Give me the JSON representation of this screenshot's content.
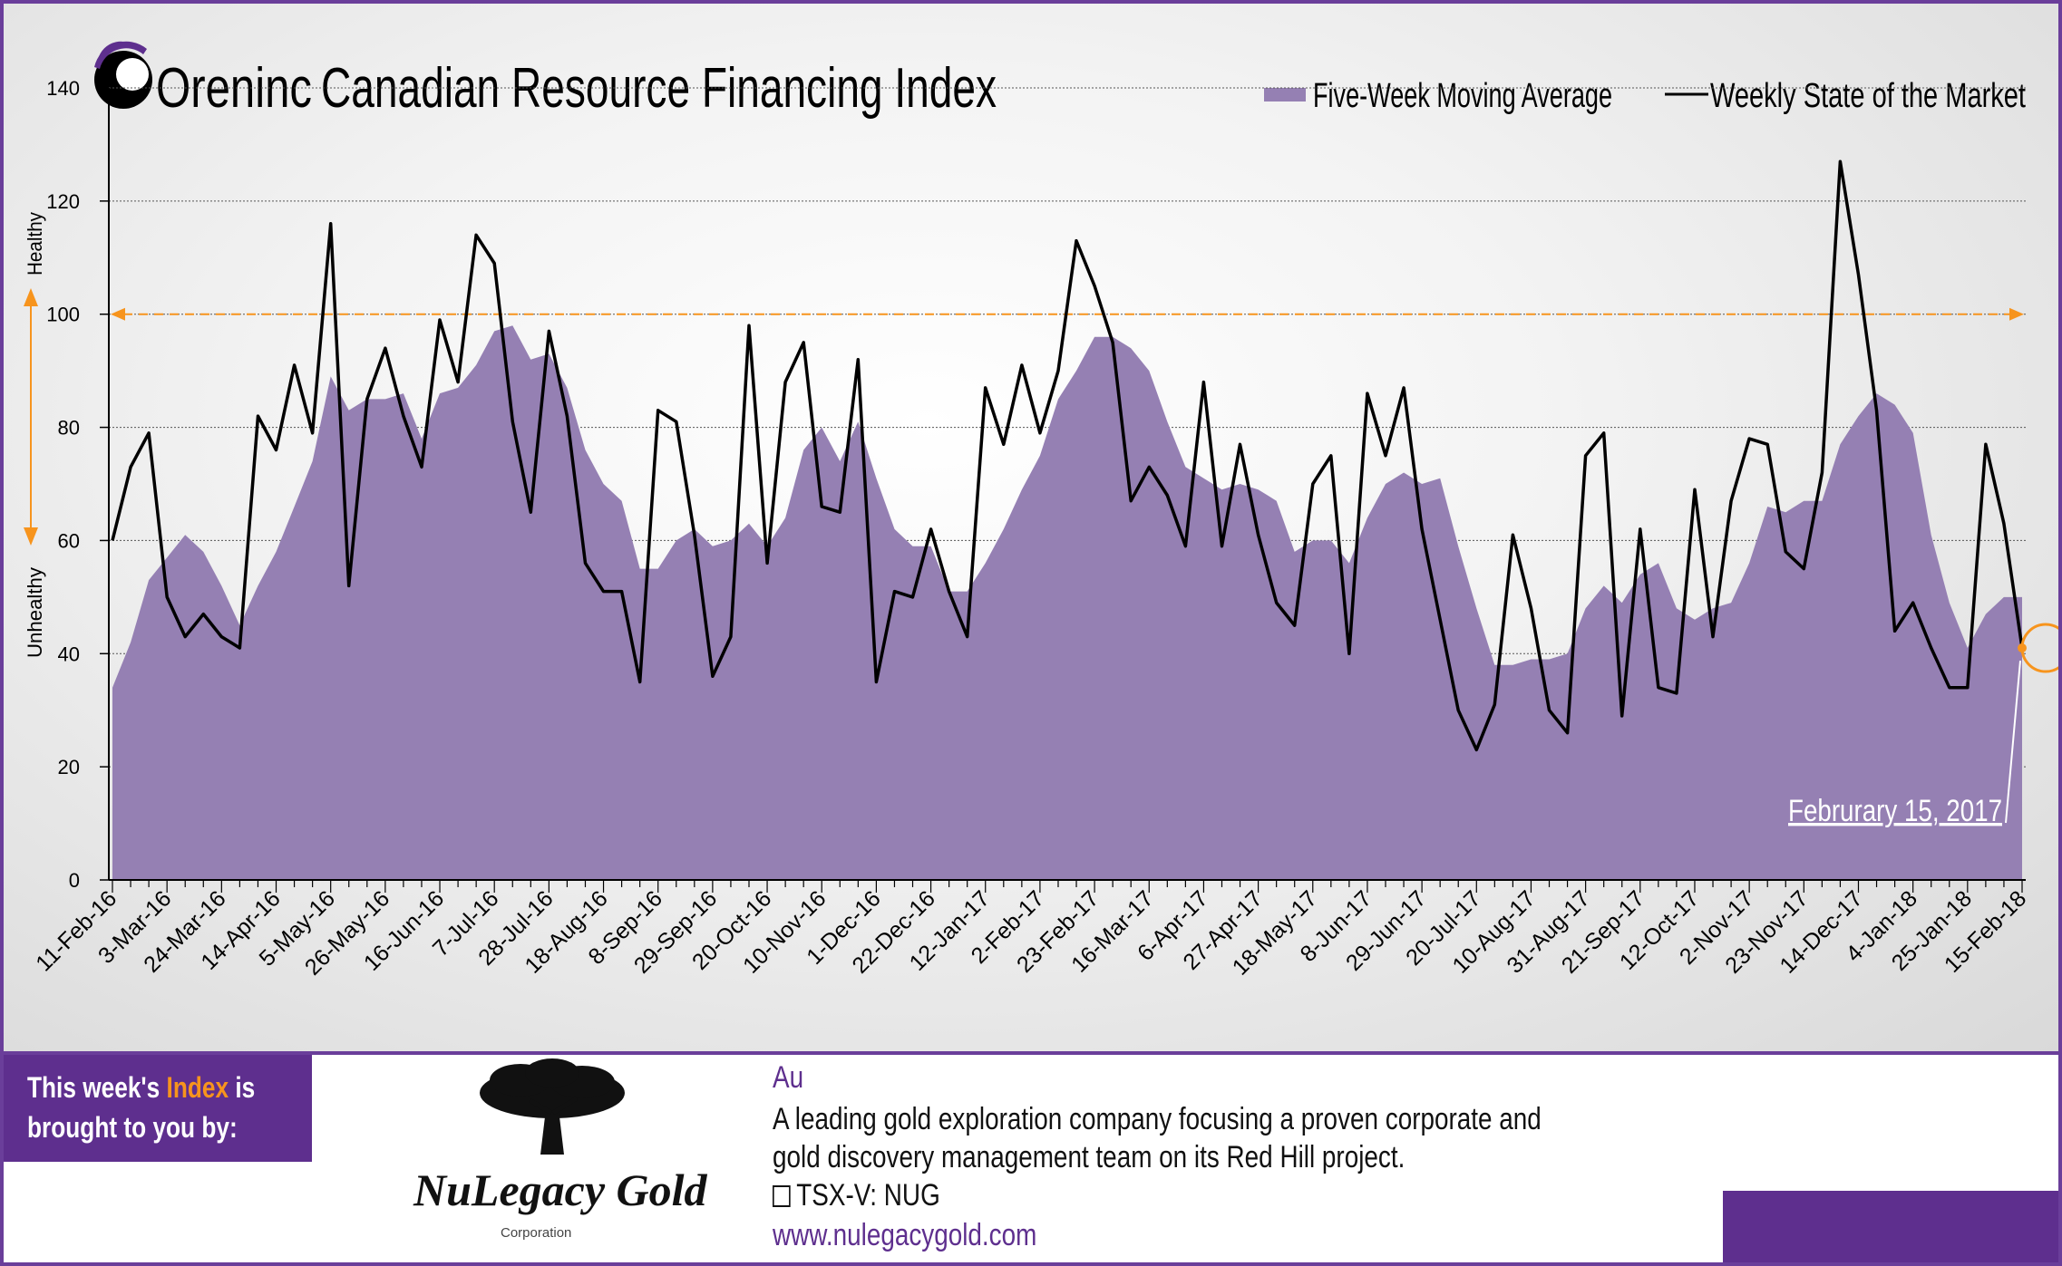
{
  "title": "Canadian Resource Financing Index",
  "brand": {
    "name": "Oreninc"
  },
  "legend": {
    "area_label": "Five-Week Moving Average",
    "line_label": "Weekly State of the Market"
  },
  "axis_side_labels": {
    "healthy": "Healthy",
    "unhealthy": "Unhealthy"
  },
  "callout": "Februrary 15, 2017",
  "colors": {
    "area": "#9580b3",
    "line": "#000000",
    "threshold": "#f7941d",
    "purple": "#5e2f8e",
    "accent": "#f7941d"
  },
  "sponsor": {
    "line1_prefix": "This week's ",
    "line1_highlight": "Index",
    "line1_suffix": " is",
    "line2": "brought to you by:",
    "company_name": "NuLegacy Gold",
    "company_sub": "Corporation",
    "symbol": "Au",
    "description_line1": "A leading gold exploration company focusing a proven corporate and",
    "description_line2": "gold discovery management team on its Red Hill project.",
    "ticker": "TSX-V:  NUG",
    "ticker_icon": "chart-icon",
    "url": "www.nulegacygold.com"
  },
  "chart_data": {
    "type": "area+line",
    "ylim": [
      0,
      140
    ],
    "yticks": [
      0,
      20,
      40,
      60,
      80,
      100,
      120,
      140
    ],
    "threshold": 100,
    "grid": true,
    "legend_position": "top-right",
    "x_tick_labels": [
      "11-Feb-16",
      "3-Mar-16",
      "24-Mar-16",
      "14-Apr-16",
      "5-May-16",
      "26-May-16",
      "16-Jun-16",
      "7-Jul-16",
      "28-Jul-16",
      "18-Aug-16",
      "8-Sep-16",
      "29-Sep-16",
      "20-Oct-16",
      "10-Nov-16",
      "1-Dec-16",
      "22-Dec-16",
      "12-Jan-17",
      "2-Feb-17",
      "23-Feb-17",
      "16-Mar-17",
      "6-Apr-17",
      "27-Apr-17",
      "18-May-17",
      "8-Jun-17",
      "29-Jun-17",
      "20-Jul-17",
      "10-Aug-17",
      "31-Aug-17",
      "21-Sep-17",
      "12-Oct-17",
      "2-Nov-17",
      "23-Nov-17",
      "14-Dec-17",
      "4-Jan-18",
      "25-Jan-18",
      "15-Feb-18"
    ],
    "series": [
      {
        "name": "Five-Week Moving Average",
        "type": "area",
        "values": [
          34,
          42,
          53,
          57,
          61,
          58,
          52,
          45,
          52,
          58,
          66,
          74,
          89,
          83,
          85,
          85,
          86,
          78,
          86,
          87,
          91,
          97,
          98,
          92,
          93,
          87,
          76,
          70,
          67,
          55,
          55,
          60,
          62,
          59,
          60,
          63,
          59,
          64,
          76,
          80,
          74,
          81,
          71,
          62,
          59,
          59,
          51,
          51,
          56,
          62,
          69,
          75,
          85,
          90,
          96,
          96,
          94,
          90,
          81,
          73,
          71,
          69,
          70,
          69,
          67,
          58,
          60,
          60,
          56,
          64,
          70,
          72,
          70,
          71,
          59,
          48,
          38,
          38,
          39,
          39,
          40,
          48,
          52,
          49,
          54,
          56,
          48,
          46,
          48,
          49,
          56,
          66,
          65,
          67,
          67,
          77,
          82,
          86,
          84,
          79,
          61,
          49,
          41,
          47,
          50,
          50
        ]
      },
      {
        "name": "Weekly State of the Market",
        "type": "line",
        "values": [
          60,
          73,
          79,
          50,
          43,
          47,
          43,
          41,
          82,
          76,
          91,
          79,
          116,
          52,
          85,
          94,
          82,
          73,
          99,
          88,
          114,
          109,
          81,
          65,
          97,
          82,
          56,
          51,
          51,
          35,
          83,
          81,
          61,
          36,
          43,
          98,
          56,
          88,
          95,
          66,
          65,
          92,
          35,
          51,
          50,
          62,
          51,
          43,
          87,
          77,
          91,
          79,
          90,
          113,
          105,
          95,
          67,
          73,
          68,
          59,
          88,
          59,
          77,
          61,
          49,
          45,
          70,
          75,
          40,
          86,
          75,
          87,
          62,
          46,
          30,
          23,
          31,
          61,
          48,
          30,
          26,
          75,
          79,
          29,
          62,
          34,
          33,
          69,
          43,
          67,
          78,
          77,
          58,
          55,
          72,
          127,
          107,
          83,
          44,
          49,
          41,
          34,
          34,
          77,
          63,
          41
        ]
      }
    ],
    "highlight_point": {
      "index": 105,
      "value": 41
    }
  }
}
